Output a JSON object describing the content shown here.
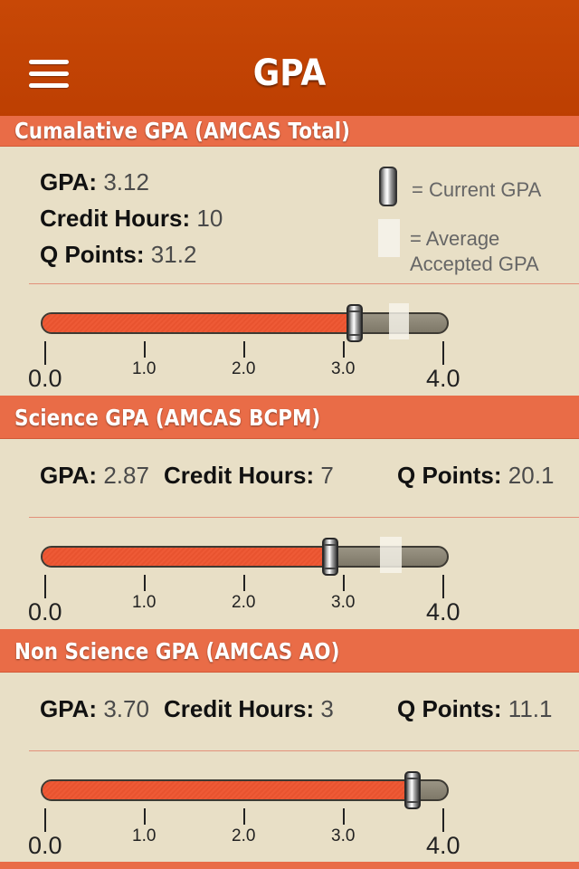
{
  "nav": {
    "title": "GPA",
    "menu_icon": "hamburger-menu-icon"
  },
  "legend": {
    "current": "= Current GPA",
    "average_line1": "= Average",
    "average_line2": "Accepted GPA"
  },
  "scale": {
    "min": 0,
    "max": 4,
    "labels": [
      "0.0",
      "1.0",
      "2.0",
      "3.0",
      "4.0"
    ]
  },
  "sections": [
    {
      "title": "Cumalative GPA (AMCAS Total)",
      "gpa_label": "GPA:",
      "gpa_value": "3.12",
      "hours_label": "Credit Hours:",
      "hours_value": "10",
      "qpoints_label": "Q Points:",
      "qpoints_value": "31.2",
      "current_gpa": 3.12,
      "average_range": [
        3.45,
        3.65
      ]
    },
    {
      "title": "Science GPA (AMCAS BCPM)",
      "gpa_label": "GPA:",
      "gpa_value": "2.87",
      "hours_label": "Credit Hours:",
      "hours_value": "7",
      "qpoints_label": "Q Points:",
      "qpoints_value": "20.1",
      "current_gpa": 2.87,
      "average_range": [
        3.36,
        3.58
      ]
    },
    {
      "title": "Non Science GPA (AMCAS AO)",
      "gpa_label": "GPA:",
      "gpa_value": "3.70",
      "hours_label": "Credit Hours:",
      "hours_value": "3",
      "qpoints_label": "Q Points:",
      "qpoints_value": "11.1",
      "current_gpa": 3.7,
      "average_range": null
    }
  ],
  "colors": {
    "nav": "#c54404",
    "header": "#e96c47",
    "fill": "#ee5a36",
    "background": "#e8dfc6"
  }
}
